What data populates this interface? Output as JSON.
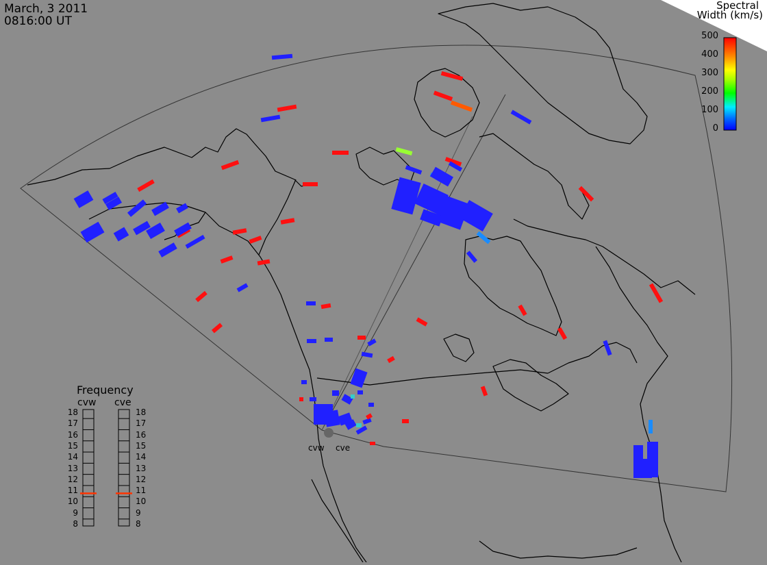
{
  "header": {
    "date": "March, 3 2011",
    "time": "0816:00 UT"
  },
  "colorbar": {
    "title_line1": "Spectral",
    "title_line2": "Width (km/s)",
    "ticks": [
      "500",
      "400",
      "300",
      "200",
      "100",
      "0"
    ],
    "colors": [
      "#0000ff",
      "#00aaff",
      "#00ffdd",
      "#00ff00",
      "#aaff00",
      "#ffff00",
      "#ffaa00",
      "#ff5500",
      "#ff0000"
    ]
  },
  "frequency_panel": {
    "title": "Frequency",
    "radars": [
      {
        "name": "cvw",
        "frequency_mhz": 10.8
      },
      {
        "name": "cve",
        "frequency_mhz": 10.8
      }
    ],
    "scale_labels": [
      "18",
      "17",
      "16",
      "15",
      "14",
      "13",
      "12",
      "11",
      "10",
      "9",
      "8"
    ]
  },
  "radar_sites": {
    "west": "cvw",
    "east": "cve"
  },
  "colors": {
    "background": "#8c8c8c",
    "coastline": "#000000",
    "fov_outline": "#303030",
    "indicator": "#ff3300"
  }
}
